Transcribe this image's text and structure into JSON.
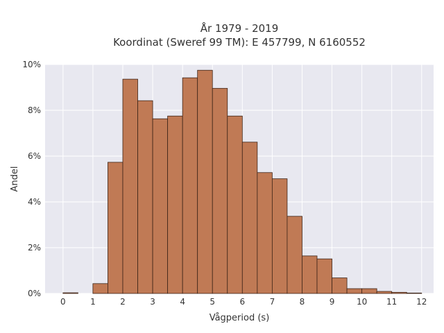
{
  "chart_data": {
    "type": "bar",
    "title_lines": [
      "År 1979 - 2019",
      "Koordinat (Sweref 99 TM): E 457799, N 6160552"
    ],
    "xlabel": "Vågperiod (s)",
    "ylabel": "Andel",
    "xlim": [
      -0.6,
      12.4
    ],
    "ylim": [
      0,
      0.1
    ],
    "x_ticks": [
      0,
      1,
      2,
      3,
      4,
      5,
      6,
      7,
      8,
      9,
      10,
      11,
      12
    ],
    "y_ticks": [
      0,
      0.02,
      0.04,
      0.06,
      0.08,
      0.1
    ],
    "y_tick_labels": [
      "0%",
      "2%",
      "4%",
      "6%",
      "8%",
      "10%"
    ],
    "bin_width": 0.5,
    "bins": [
      {
        "x0": 0.0,
        "x1": 0.5,
        "value": 0.0003
      },
      {
        "x0": 0.5,
        "x1": 1.0,
        "value": 0.0
      },
      {
        "x0": 1.0,
        "x1": 1.5,
        "value": 0.0043
      },
      {
        "x0": 1.5,
        "x1": 2.0,
        "value": 0.0573
      },
      {
        "x0": 2.0,
        "x1": 2.5,
        "value": 0.0936
      },
      {
        "x0": 2.5,
        "x1": 3.0,
        "value": 0.0842
      },
      {
        "x0": 3.0,
        "x1": 3.5,
        "value": 0.0763
      },
      {
        "x0": 3.5,
        "x1": 4.0,
        "value": 0.0775
      },
      {
        "x0": 4.0,
        "x1": 4.5,
        "value": 0.0942
      },
      {
        "x0": 4.5,
        "x1": 5.0,
        "value": 0.0975
      },
      {
        "x0": 5.0,
        "x1": 5.5,
        "value": 0.0896
      },
      {
        "x0": 5.5,
        "x1": 6.0,
        "value": 0.0775
      },
      {
        "x0": 6.0,
        "x1": 6.5,
        "value": 0.0661
      },
      {
        "x0": 6.5,
        "x1": 7.0,
        "value": 0.0528
      },
      {
        "x0": 7.0,
        "x1": 7.5,
        "value": 0.0501
      },
      {
        "x0": 7.5,
        "x1": 8.0,
        "value": 0.0337
      },
      {
        "x0": 8.0,
        "x1": 8.5,
        "value": 0.0164
      },
      {
        "x0": 8.5,
        "x1": 9.0,
        "value": 0.0151
      },
      {
        "x0": 9.0,
        "x1": 9.5,
        "value": 0.0068
      },
      {
        "x0": 9.5,
        "x1": 10.0,
        "value": 0.0021
      },
      {
        "x0": 10.0,
        "x1": 10.5,
        "value": 0.0021
      },
      {
        "x0": 10.5,
        "x1": 11.0,
        "value": 0.0009
      },
      {
        "x0": 11.0,
        "x1": 11.5,
        "value": 0.0005
      },
      {
        "x0": 11.5,
        "x1": 12.0,
        "value": 0.0002
      }
    ],
    "grid": true,
    "colors": {
      "bar_fill": "#c07a55",
      "bar_edge": "#3d2418",
      "plot_background": "#e8e8f0",
      "grid": "#ffffff"
    }
  }
}
